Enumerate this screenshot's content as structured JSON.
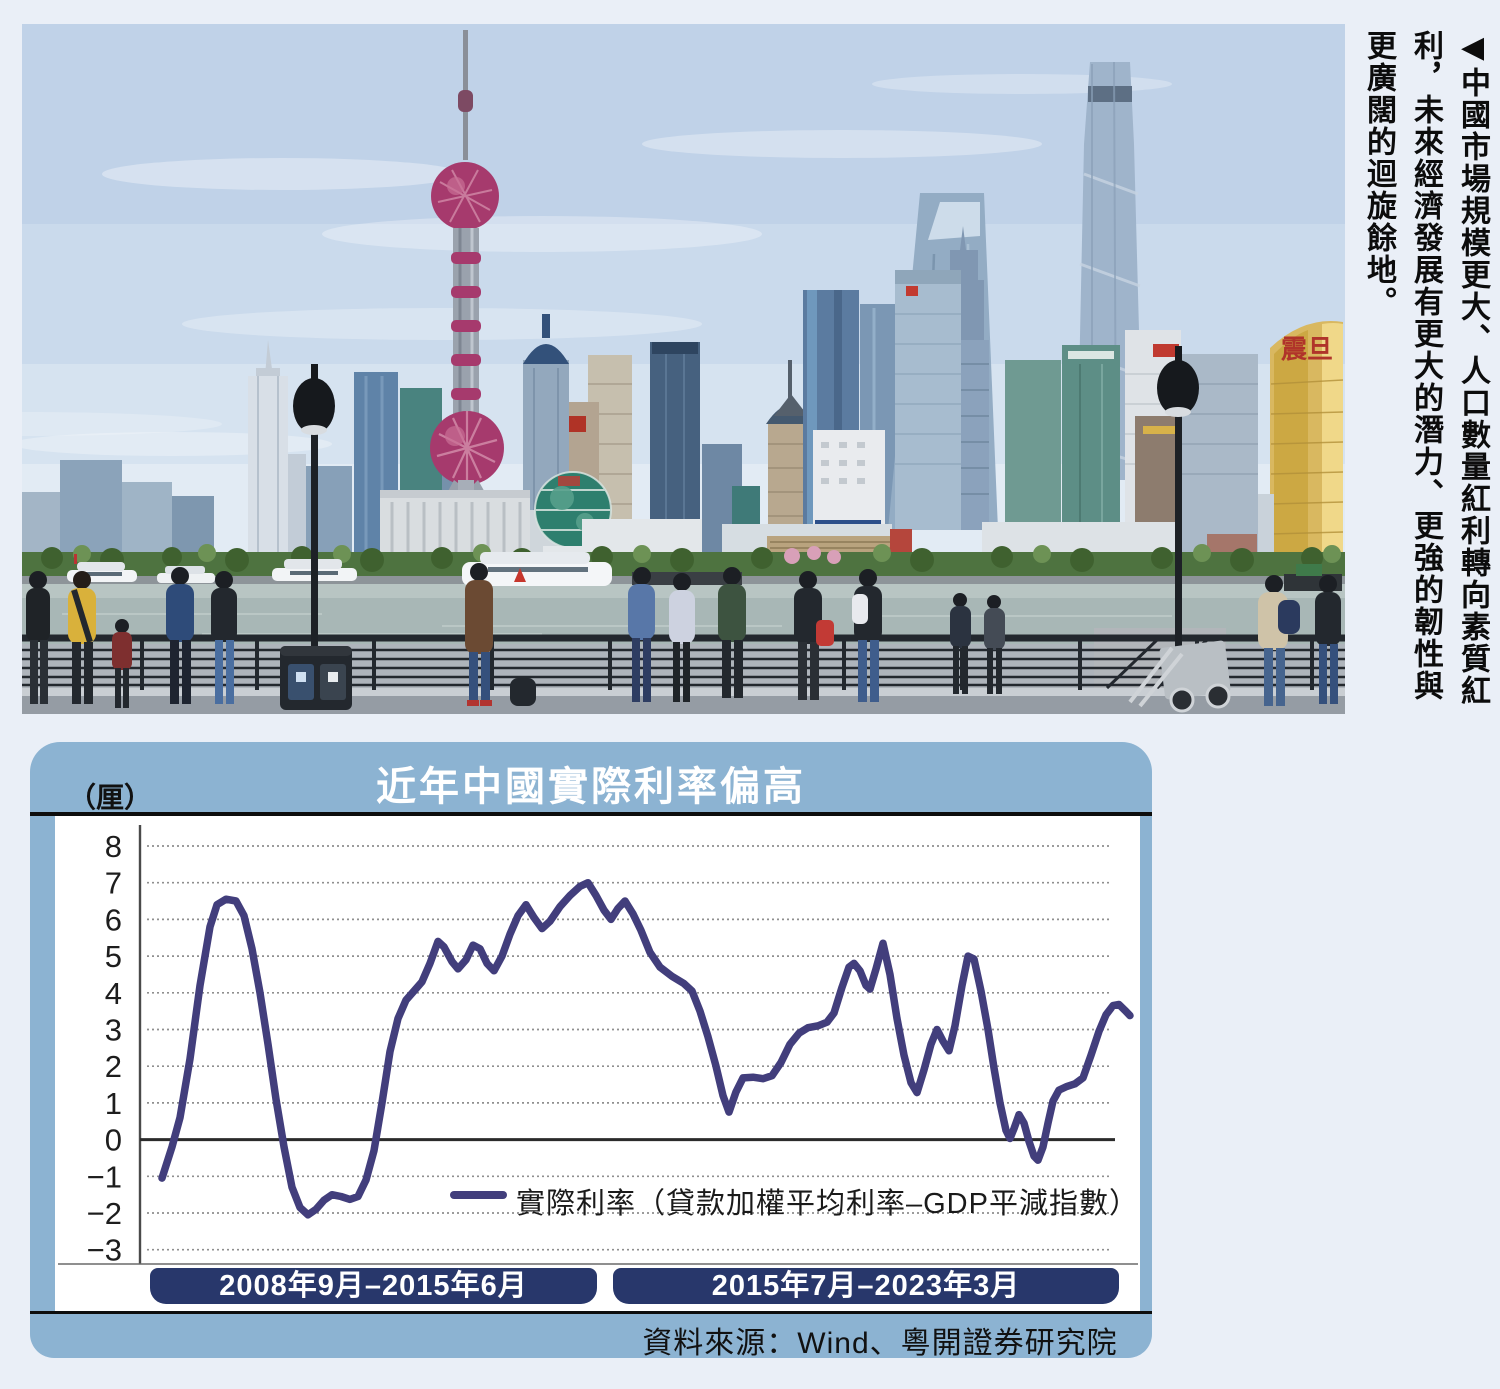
{
  "caption": "◀中國市場規模更大、人口數量紅利轉向素質紅利，未來經濟發展有更大的潛力、更強的韌性與更廣闊的迴旋餘地。",
  "photo": {
    "aurora_sign": "震旦"
  },
  "chart_data": {
    "type": "line",
    "title": "近年中國實際利率偏高",
    "unit_label": "（厘）",
    "ylabel": "厘",
    "ylim": [
      -3,
      8
    ],
    "yticks": [
      8,
      7,
      6,
      5,
      4,
      3,
      2,
      1,
      0,
      -1,
      -2,
      -3
    ],
    "grid": "dotted horizontal",
    "legend_position": "inside bottom center",
    "x_periods": [
      "2008年9月–2015年6月",
      "2015年7月–2023年3月"
    ],
    "legend": "實際利率（貸款加權平均利率–GDP平減指數）",
    "source": "資料來源：Wind、粵開證券研究院",
    "colors": {
      "line": "#423e7c",
      "panel": "#8cb3d2",
      "band": "#28376b",
      "title_text": "#ffffff"
    },
    "series": [
      {
        "name": "實際利率",
        "color": "#423e7c",
        "points": [
          [
            162,
            -1.05
          ],
          [
            172,
            -0.2
          ],
          [
            180,
            0.6
          ],
          [
            190,
            2.2
          ],
          [
            200,
            4.2
          ],
          [
            210,
            5.8
          ],
          [
            217,
            6.4
          ],
          [
            226,
            6.55
          ],
          [
            236,
            6.5
          ],
          [
            244,
            6.1
          ],
          [
            252,
            5.2
          ],
          [
            260,
            4.0
          ],
          [
            268,
            2.6
          ],
          [
            276,
            1.1
          ],
          [
            284,
            -0.2
          ],
          [
            292,
            -1.3
          ],
          [
            300,
            -1.85
          ],
          [
            308,
            -2.05
          ],
          [
            316,
            -1.9
          ],
          [
            324,
            -1.65
          ],
          [
            332,
            -1.5
          ],
          [
            341,
            -1.55
          ],
          [
            350,
            -1.63
          ],
          [
            358,
            -1.55
          ],
          [
            366,
            -1.1
          ],
          [
            374,
            -0.3
          ],
          [
            382,
            1.0
          ],
          [
            390,
            2.4
          ],
          [
            398,
            3.3
          ],
          [
            406,
            3.8
          ],
          [
            414,
            4.05
          ],
          [
            422,
            4.3
          ],
          [
            430,
            4.8
          ],
          [
            438,
            5.4
          ],
          [
            444,
            5.25
          ],
          [
            452,
            4.85
          ],
          [
            458,
            4.65
          ],
          [
            466,
            4.9
          ],
          [
            473,
            5.3
          ],
          [
            480,
            5.2
          ],
          [
            487,
            4.8
          ],
          [
            494,
            4.6
          ],
          [
            502,
            5.0
          ],
          [
            510,
            5.6
          ],
          [
            518,
            6.1
          ],
          [
            526,
            6.4
          ],
          [
            534,
            6.05
          ],
          [
            542,
            5.75
          ],
          [
            550,
            5.95
          ],
          [
            560,
            6.35
          ],
          [
            570,
            6.65
          ],
          [
            580,
            6.9
          ],
          [
            588,
            7.0
          ],
          [
            596,
            6.65
          ],
          [
            604,
            6.25
          ],
          [
            611,
            6.0
          ],
          [
            618,
            6.3
          ],
          [
            625,
            6.5
          ],
          [
            633,
            6.15
          ],
          [
            641,
            5.7
          ],
          [
            650,
            5.1
          ],
          [
            660,
            4.7
          ],
          [
            672,
            4.45
          ],
          [
            684,
            4.25
          ],
          [
            692,
            4.05
          ],
          [
            700,
            3.5
          ],
          [
            708,
            2.8
          ],
          [
            716,
            2.0
          ],
          [
            723,
            1.2
          ],
          [
            729,
            0.75
          ],
          [
            736,
            1.3
          ],
          [
            743,
            1.68
          ],
          [
            753,
            1.7
          ],
          [
            763,
            1.66
          ],
          [
            772,
            1.74
          ],
          [
            781,
            2.1
          ],
          [
            790,
            2.6
          ],
          [
            799,
            2.9
          ],
          [
            808,
            3.05
          ],
          [
            818,
            3.1
          ],
          [
            827,
            3.2
          ],
          [
            834,
            3.45
          ],
          [
            842,
            4.15
          ],
          [
            849,
            4.7
          ],
          [
            854,
            4.8
          ],
          [
            860,
            4.6
          ],
          [
            866,
            4.2
          ],
          [
            870,
            4.1
          ],
          [
            876,
            4.65
          ],
          [
            883,
            5.35
          ],
          [
            890,
            4.5
          ],
          [
            897,
            3.3
          ],
          [
            904,
            2.3
          ],
          [
            911,
            1.55
          ],
          [
            917,
            1.28
          ],
          [
            924,
            1.9
          ],
          [
            931,
            2.6
          ],
          [
            937,
            3.0
          ],
          [
            943,
            2.68
          ],
          [
            949,
            2.42
          ],
          [
            955,
            3.1
          ],
          [
            962,
            4.2
          ],
          [
            968,
            5.0
          ],
          [
            974,
            4.92
          ],
          [
            981,
            4.05
          ],
          [
            988,
            3.0
          ],
          [
            994,
            1.95
          ],
          [
            1000,
            1.0
          ],
          [
            1006,
            0.25
          ],
          [
            1010,
            0.03
          ],
          [
            1014,
            0.3
          ],
          [
            1019,
            0.68
          ],
          [
            1024,
            0.45
          ],
          [
            1029,
            -0.05
          ],
          [
            1034,
            -0.45
          ],
          [
            1038,
            -0.56
          ],
          [
            1043,
            -0.2
          ],
          [
            1048,
            0.45
          ],
          [
            1053,
            1.05
          ],
          [
            1059,
            1.35
          ],
          [
            1067,
            1.45
          ],
          [
            1075,
            1.52
          ],
          [
            1083,
            1.68
          ],
          [
            1091,
            2.3
          ],
          [
            1099,
            2.95
          ],
          [
            1106,
            3.4
          ],
          [
            1113,
            3.65
          ],
          [
            1119,
            3.68
          ],
          [
            1125,
            3.52
          ],
          [
            1130,
            3.38
          ]
        ]
      }
    ]
  }
}
